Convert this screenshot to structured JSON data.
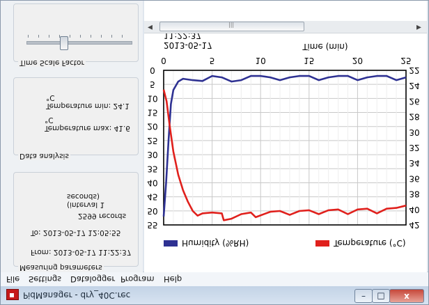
{
  "window": {
    "title": "PidManager - dry_40C.rec",
    "min_glyph": "–",
    "max_glyph": "□",
    "close_glyph": "x"
  },
  "menu": [
    "File",
    "Settings",
    "Datalogger",
    "Program",
    "Help"
  ],
  "panel": {
    "measuring": {
      "title": "Measuring parameters",
      "from": "From: 2013-05-17 11:22:37",
      "to": "To: 2013-05-17 12:05:55",
      "records": "2599 records",
      "interval": "(interval 1 seconds)"
    },
    "analysis": {
      "title": "Data analysis",
      "temp_max": "Temperature max: 41.6 °C",
      "temp_min": "Temperature min: 24.1 °C"
    },
    "time_scale": {
      "title": "Time Scale Factor",
      "level": 0.35
    }
  },
  "chart_data": {
    "type": "line",
    "header_date": "2013-05-17",
    "header_time": "11:22:37",
    "xlabel": "Time (min)",
    "x_ticks": [
      0,
      5,
      10,
      15,
      20,
      25
    ],
    "xlim": [
      0,
      25
    ],
    "y_left_ticks": [
      0,
      5,
      10,
      15,
      20,
      25,
      30,
      35,
      40,
      45,
      50,
      55
    ],
    "y_left_lim": [
      0,
      55
    ],
    "y_right_ticks": [
      22,
      24,
      26,
      28,
      30,
      32,
      34,
      36,
      38,
      40,
      42
    ],
    "y_right_lim": [
      22,
      42
    ],
    "grid": true,
    "legend_position": "bottom",
    "series": [
      {
        "name": "Humidity (%RH)",
        "axis": "left",
        "color": "#2e3192",
        "x": [
          0,
          0.25,
          0.5,
          0.75,
          1,
          1.5,
          2,
          3,
          4,
          5,
          6,
          7,
          8,
          9,
          10,
          11,
          12,
          13,
          14,
          15,
          16,
          17,
          18,
          19,
          20,
          21,
          22,
          23,
          24,
          25
        ],
        "y": [
          52,
          40,
          25,
          12,
          7,
          4,
          3,
          3.5,
          3.8,
          2,
          2.5,
          4,
          3.5,
          2,
          2,
          2.5,
          3.5,
          2.5,
          2,
          2,
          3.5,
          2.5,
          2,
          2,
          3.5,
          2.5,
          2,
          2,
          3.5,
          2.5
        ]
      },
      {
        "name": "Temperature (°C)",
        "axis": "right",
        "color": "#e0201c",
        "x": [
          0,
          0.3,
          0.6,
          1,
          1.5,
          2,
          2.5,
          3,
          3.5,
          4,
          5,
          6,
          6.2,
          7,
          8,
          9,
          9.5,
          11,
          12,
          13,
          14,
          15,
          16,
          17,
          18,
          19,
          20,
          21,
          22,
          23,
          24,
          25
        ],
        "y": [
          24.5,
          26,
          29,
          32.5,
          35.5,
          37.5,
          39,
          40.2,
          40.8,
          40.5,
          40.4,
          40.5,
          41.4,
          41.2,
          40.6,
          40.4,
          41,
          40.3,
          40.2,
          40.7,
          40.2,
          40.1,
          40.6,
          40.1,
          40.0,
          40.6,
          40.0,
          39.9,
          40.5,
          39.9,
          39.8,
          39.5
        ]
      }
    ]
  }
}
